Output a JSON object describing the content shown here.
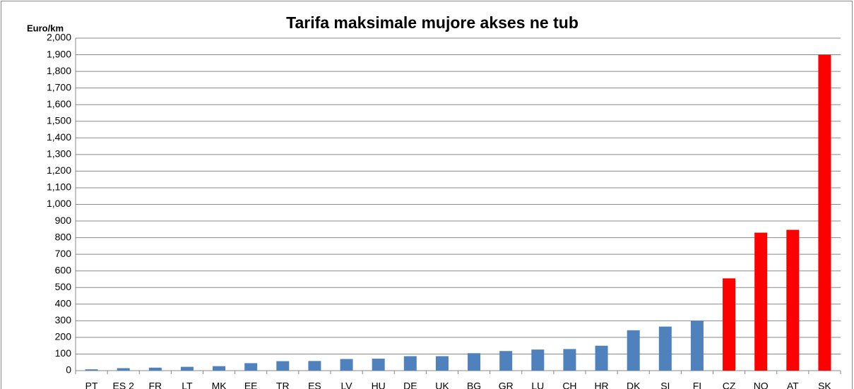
{
  "chart_data": {
    "type": "bar",
    "title": "Tarifa maksimale mujore akses ne tub",
    "y_label": "Euro/km",
    "categories": [
      "PT",
      "ES 2",
      "FR",
      "LT",
      "MK",
      "EE",
      "TR",
      "ES",
      "LV",
      "HU",
      "DE",
      "UK",
      "BG",
      "GR",
      "LU",
      "CH",
      "HR",
      "DK",
      "SI",
      "FI",
      "CZ",
      "NO",
      "AT",
      "SK"
    ],
    "values": [
      8,
      15,
      18,
      23,
      27,
      45,
      57,
      58,
      70,
      72,
      87,
      87,
      105,
      118,
      127,
      130,
      150,
      243,
      265,
      300,
      555,
      830,
      847,
      1900
    ],
    "colors": [
      "#4f81bd",
      "#4f81bd",
      "#4f81bd",
      "#4f81bd",
      "#4f81bd",
      "#4f81bd",
      "#4f81bd",
      "#4f81bd",
      "#4f81bd",
      "#4f81bd",
      "#4f81bd",
      "#4f81bd",
      "#4f81bd",
      "#4f81bd",
      "#4f81bd",
      "#4f81bd",
      "#4f81bd",
      "#4f81bd",
      "#4f81bd",
      "#4f81bd",
      "#ff0000",
      "#ff0000",
      "#ff0000",
      "#ff0000"
    ],
    "ylim": [
      0,
      2000
    ],
    "yticks": [
      0,
      100,
      200,
      300,
      400,
      500,
      600,
      700,
      800,
      900,
      {
        "value": 1000,
        "label": "1,000"
      },
      {
        "value": 1100,
        "label": "1,100"
      },
      {
        "value": 1200,
        "label": "1,200"
      },
      {
        "value": 1300,
        "label": "1,300"
      },
      {
        "value": 1400,
        "label": "1,400"
      },
      {
        "value": 1500,
        "label": "1,500"
      },
      {
        "value": 1600,
        "label": "1,600"
      },
      {
        "value": 1700,
        "label": "1,700"
      },
      {
        "value": 1800,
        "label": "1,800"
      },
      {
        "value": 1900,
        "label": "1,900"
      },
      {
        "value": 2000,
        "label": "2,000"
      }
    ],
    "grid": true
  }
}
